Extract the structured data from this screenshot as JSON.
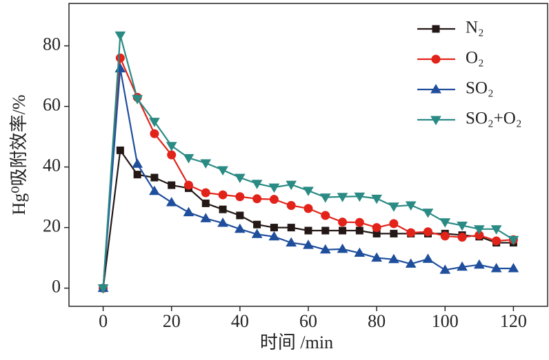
{
  "chart_data": {
    "type": "line",
    "xlabel": "时间 /min",
    "ylabel": "Hg⁰吸附效率/%",
    "x": [
      0,
      5,
      10,
      15,
      20,
      25,
      30,
      35,
      40,
      45,
      50,
      55,
      60,
      65,
      70,
      75,
      80,
      85,
      90,
      95,
      100,
      105,
      110,
      115,
      120
    ],
    "series": [
      {
        "name": "N₂",
        "color": "#231815",
        "marker": "square",
        "values": [
          0,
          45.5,
          37.5,
          36.5,
          34,
          33,
          28,
          26,
          24,
          21,
          20,
          20,
          19,
          19,
          19,
          19,
          18,
          18,
          18,
          18,
          18,
          17.5,
          17,
          15,
          15
        ]
      },
      {
        "name": "O₂",
        "color": "#e2231a",
        "marker": "circle",
        "values": [
          0,
          76,
          63,
          51,
          44,
          34,
          31.5,
          30.8,
          30.2,
          29.5,
          29.3,
          27.3,
          26.3,
          24,
          21.8,
          21.7,
          20,
          21.3,
          18.3,
          18.6,
          17.2,
          16.8,
          17.5,
          15.6,
          16
        ]
      },
      {
        "name": "SO₂",
        "color": "#1f4e9c",
        "marker": "triangle-up",
        "values": [
          0,
          72.5,
          41,
          32,
          28.3,
          25,
          23,
          21.5,
          19.5,
          17.8,
          17,
          15,
          14.2,
          12.7,
          12.9,
          11.6,
          10,
          9.5,
          8,
          9.6,
          6,
          7,
          7.7,
          6.5,
          6.5
        ]
      },
      {
        "name": "SO₂+O₂",
        "color": "#2a8a84",
        "marker": "triangle-down",
        "values": [
          0,
          83.5,
          62.5,
          55,
          47,
          43,
          41.3,
          39,
          36.5,
          34.5,
          33.3,
          34.2,
          32.2,
          30,
          30.2,
          30.3,
          29.6,
          27,
          27.4,
          25,
          21.8,
          20.7,
          19.5,
          19.5,
          16
        ]
      }
    ],
    "xlim": [
      -10,
      130
    ],
    "xticks": [
      0,
      20,
      40,
      60,
      80,
      100,
      120
    ],
    "ylim": [
      -6,
      94
    ],
    "yticks": [
      0,
      20,
      40,
      60,
      80
    ],
    "legend": "upper right"
  }
}
